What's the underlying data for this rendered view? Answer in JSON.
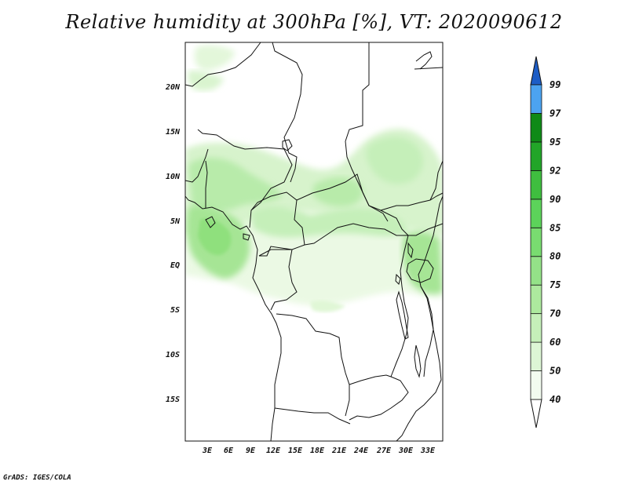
{
  "title": "Relative humidity at 300hPa [%], VT: 2020090612",
  "footer": "GrADS: IGES/COLA",
  "map": {
    "lon_range": [
      0,
      36
    ],
    "lat_range": [
      -20,
      25
    ],
    "lat_ticks": [
      "20N",
      "15N",
      "10N",
      "5N",
      "EQ",
      "5S",
      "10S",
      "15S"
    ],
    "lon_ticks": [
      "3E",
      "6E",
      "9E",
      "12E",
      "15E",
      "18E",
      "21E",
      "24E",
      "27E",
      "30E",
      "33E"
    ]
  },
  "colorbar": {
    "levels": [
      "40",
      "50",
      "60",
      "70",
      "75",
      "80",
      "85",
      "90",
      "92",
      "95",
      "97",
      "99"
    ],
    "colors": [
      "#f2fbef",
      "#ddf6d5",
      "#c5efb9",
      "#ade99e",
      "#94e288",
      "#79dc70",
      "#5cd35a",
      "#3fbe3f",
      "#22a528",
      "#0f8a17",
      "#4ca3f0",
      "#2d82e3",
      "#1d5dc6"
    ]
  }
}
